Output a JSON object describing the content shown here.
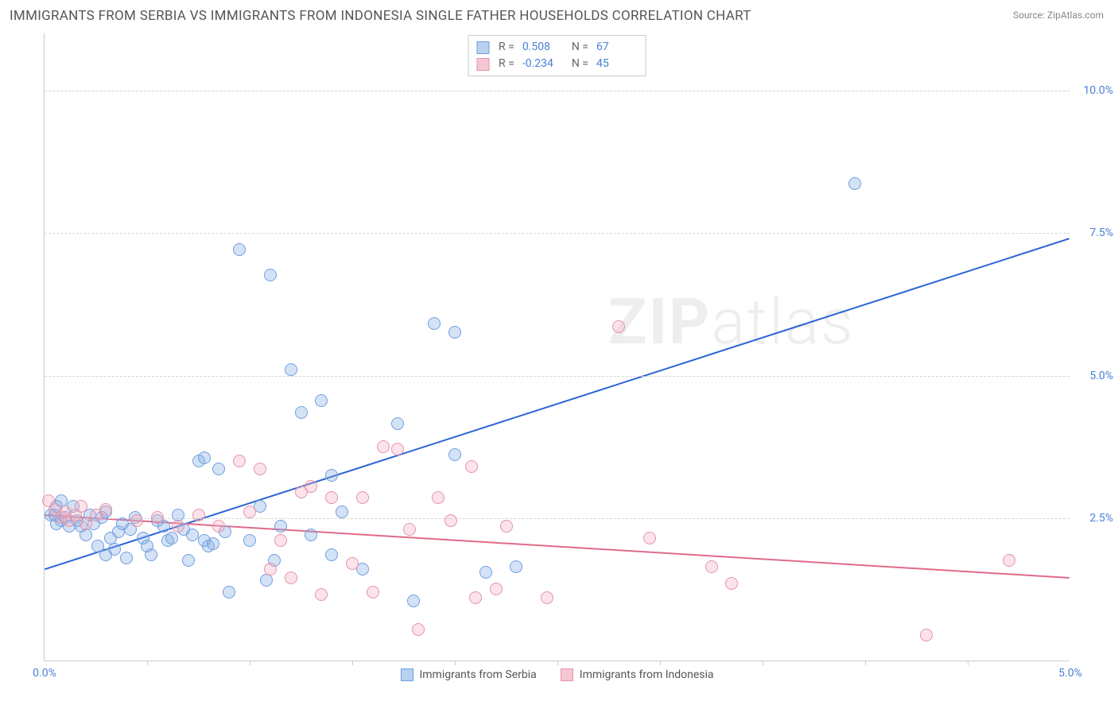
{
  "title": "IMMIGRANTS FROM SERBIA VS IMMIGRANTS FROM INDONESIA SINGLE FATHER HOUSEHOLDS CORRELATION CHART",
  "source_prefix": "Source: ",
  "source_name": "ZipAtlas.com",
  "ylabel": "Single Father Households",
  "watermark_a": "ZIP",
  "watermark_b": "atlas",
  "chart": {
    "type": "scatter",
    "xlim": [
      0.0,
      5.0
    ],
    "ylim": [
      0.0,
      11.0
    ],
    "x_ticks": [
      0.0,
      5.0
    ],
    "x_tick_labels": [
      "0.0%",
      "5.0%"
    ],
    "x_minor_ticks": [
      0.5,
      1.0,
      1.5,
      2.0,
      2.5,
      3.0,
      3.5,
      4.0,
      4.5
    ],
    "y_ticks": [
      2.5,
      5.0,
      7.5,
      10.0
    ],
    "y_tick_labels": [
      "2.5%",
      "5.0%",
      "7.5%",
      "10.0%"
    ],
    "y_tick_color": "#4a80d6",
    "x_tick_color": "#4a80d6",
    "grid_color": "#d5d5d5",
    "background_color": "#ffffff",
    "marker_radius": 8,
    "marker_stroke_width": 1.3,
    "trend_line_width": 2
  },
  "series": [
    {
      "id": "serbia",
      "label": "Immigrants from Serbia",
      "fill": "rgba(131,173,229,0.35)",
      "stroke": "#6f9fde",
      "swatch_fill": "#b8d1ef",
      "swatch_border": "#6f9fde",
      "r_value": "0.508",
      "n_value": "67",
      "trend": {
        "x1": 0.0,
        "y1": 1.6,
        "x2": 5.0,
        "y2": 7.4,
        "color": "#2b64d6"
      },
      "points": [
        [
          0.03,
          2.55
        ],
        [
          0.05,
          2.55
        ],
        [
          0.06,
          2.7
        ],
        [
          0.08,
          2.45
        ],
        [
          0.1,
          2.5
        ],
        [
          0.12,
          2.35
        ],
        [
          0.14,
          2.7
        ],
        [
          0.16,
          2.45
        ],
        [
          0.08,
          2.8
        ],
        [
          0.06,
          2.4
        ],
        [
          0.18,
          2.35
        ],
        [
          0.2,
          2.2
        ],
        [
          0.22,
          2.55
        ],
        [
          0.24,
          2.4
        ],
        [
          0.26,
          2.0
        ],
        [
          0.28,
          2.5
        ],
        [
          0.3,
          2.6
        ],
        [
          0.32,
          2.15
        ],
        [
          0.34,
          1.95
        ],
        [
          0.36,
          2.25
        ],
        [
          0.38,
          2.4
        ],
        [
          0.4,
          1.8
        ],
        [
          0.42,
          2.3
        ],
        [
          0.44,
          2.5
        ],
        [
          0.48,
          2.15
        ],
        [
          0.5,
          2.0
        ],
        [
          0.52,
          1.85
        ],
        [
          0.55,
          2.45
        ],
        [
          0.58,
          2.35
        ],
        [
          0.6,
          2.1
        ],
        [
          0.62,
          2.15
        ],
        [
          0.65,
          2.55
        ],
        [
          0.68,
          2.3
        ],
        [
          0.7,
          1.75
        ],
        [
          0.72,
          2.2
        ],
        [
          0.75,
          3.5
        ],
        [
          0.78,
          2.1
        ],
        [
          0.8,
          2.0
        ],
        [
          0.82,
          2.05
        ],
        [
          0.3,
          1.85
        ],
        [
          0.85,
          3.35
        ],
        [
          0.88,
          2.25
        ],
        [
          0.9,
          1.2
        ],
        [
          0.95,
          7.2
        ],
        [
          0.78,
          3.55
        ],
        [
          1.0,
          2.1
        ],
        [
          1.05,
          2.7
        ],
        [
          1.08,
          1.4
        ],
        [
          1.1,
          6.75
        ],
        [
          1.12,
          1.75
        ],
        [
          1.15,
          2.35
        ],
        [
          1.2,
          5.1
        ],
        [
          1.25,
          4.35
        ],
        [
          1.3,
          2.2
        ],
        [
          1.35,
          4.55
        ],
        [
          1.4,
          1.85
        ],
        [
          1.4,
          3.25
        ],
        [
          1.45,
          2.6
        ],
        [
          1.55,
          1.6
        ],
        [
          1.72,
          4.15
        ],
        [
          1.8,
          1.05
        ],
        [
          1.9,
          5.9
        ],
        [
          2.0,
          5.75
        ],
        [
          2.0,
          3.6
        ],
        [
          2.15,
          1.55
        ],
        [
          2.3,
          1.65
        ],
        [
          3.95,
          8.35
        ]
      ]
    },
    {
      "id": "indonesia",
      "label": "Immigrants from Indonesia",
      "fill": "rgba(243,174,193,0.35)",
      "stroke": "#e394ab",
      "swatch_fill": "#f5c7d3",
      "swatch_border": "#e394ab",
      "r_value": "-0.234",
      "n_value": "45",
      "trend": {
        "x1": 0.0,
        "y1": 2.55,
        "x2": 5.0,
        "y2": 1.45,
        "color": "#e06a88"
      },
      "points": [
        [
          0.05,
          2.65
        ],
        [
          0.08,
          2.5
        ],
        [
          0.1,
          2.6
        ],
        [
          0.12,
          2.45
        ],
        [
          0.15,
          2.55
        ],
        [
          0.18,
          2.7
        ],
        [
          0.2,
          2.4
        ],
        [
          0.25,
          2.55
        ],
        [
          0.3,
          2.65
        ],
        [
          0.45,
          2.45
        ],
        [
          0.55,
          2.5
        ],
        [
          0.65,
          2.35
        ],
        [
          0.75,
          2.55
        ],
        [
          0.85,
          2.35
        ],
        [
          0.95,
          3.5
        ],
        [
          1.0,
          2.6
        ],
        [
          1.05,
          3.35
        ],
        [
          1.1,
          1.6
        ],
        [
          1.15,
          2.1
        ],
        [
          1.2,
          1.45
        ],
        [
          1.25,
          2.95
        ],
        [
          1.3,
          3.05
        ],
        [
          1.35,
          1.15
        ],
        [
          1.4,
          2.85
        ],
        [
          1.5,
          1.7
        ],
        [
          1.55,
          2.85
        ],
        [
          1.6,
          1.2
        ],
        [
          1.65,
          3.75
        ],
        [
          1.72,
          3.7
        ],
        [
          1.78,
          2.3
        ],
        [
          1.82,
          0.55
        ],
        [
          1.92,
          2.85
        ],
        [
          1.98,
          2.45
        ],
        [
          2.08,
          3.4
        ],
        [
          2.1,
          1.1
        ],
        [
          2.2,
          1.25
        ],
        [
          2.25,
          2.35
        ],
        [
          2.45,
          1.1
        ],
        [
          2.8,
          5.85
        ],
        [
          2.95,
          2.15
        ],
        [
          3.25,
          1.65
        ],
        [
          3.35,
          1.35
        ],
        [
          4.3,
          0.45
        ],
        [
          4.7,
          1.75
        ],
        [
          0.02,
          2.8
        ]
      ]
    }
  ],
  "stats_labels": {
    "r": "R  =",
    "n": "N  ="
  },
  "legend_value_color": "#4a80d6"
}
